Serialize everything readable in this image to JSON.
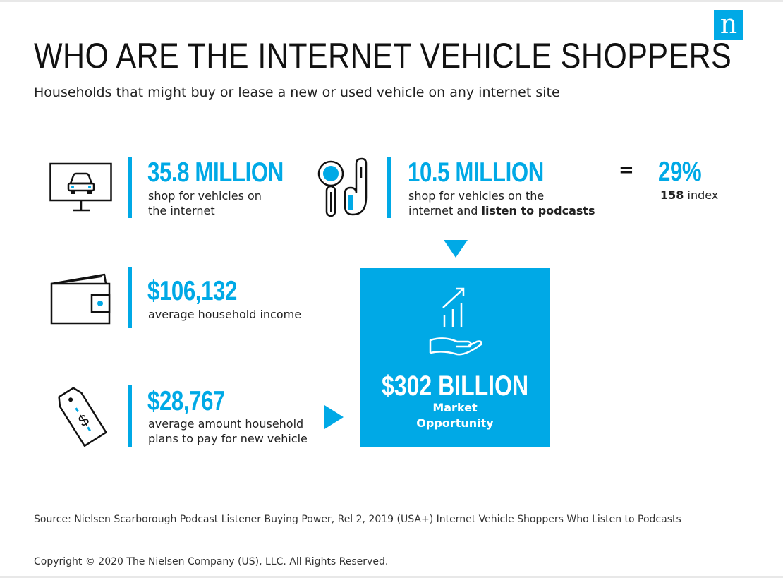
{
  "brand": {
    "logo_letter": "n",
    "accent_color": "#00a9e6"
  },
  "header": {
    "title": "WHO ARE THE INTERNET VEHICLE SHOPPERS",
    "subtitle": "Households that might buy or lease a new or used vehicle on any internet site"
  },
  "stats": {
    "shoppers": {
      "value": "35.8 MILLION",
      "desc_line1": "shop for vehicles on",
      "desc_line2": "the internet",
      "icon": "monitor-car-icon"
    },
    "podcast": {
      "value": "10.5 MILLION",
      "desc_line1": "shop for vehicles on the",
      "desc_line2_plain": "internet and ",
      "desc_line2_bold": "listen to podcasts",
      "icon": "magnifier-earbud-icon"
    },
    "share": {
      "equals": "=",
      "value": "29%",
      "index_bold": "158",
      "index_rest": " index"
    },
    "income": {
      "value": "$106,132",
      "desc_line1": "average household income",
      "icon": "wallet-icon"
    },
    "vehicle_spend": {
      "value": "$28,767",
      "desc_line1": "average amount household",
      "desc_line2": "plans to pay for new vehicle",
      "icon": "price-tag-icon"
    }
  },
  "opportunity": {
    "value": "$302 BILLION",
    "label_line1": "Market",
    "label_line2": "Opportunity",
    "icon": "hand-growth-chart-icon"
  },
  "footer": {
    "source": "Source: Nielsen Scarborough Podcast Listener Buying Power, Rel 2, 2019 (USA+) Internet Vehicle Shoppers Who Listen to Podcasts",
    "copyright": "Copyright © 2020 The Nielsen Company (US), LLC. All Rights Reserved."
  }
}
